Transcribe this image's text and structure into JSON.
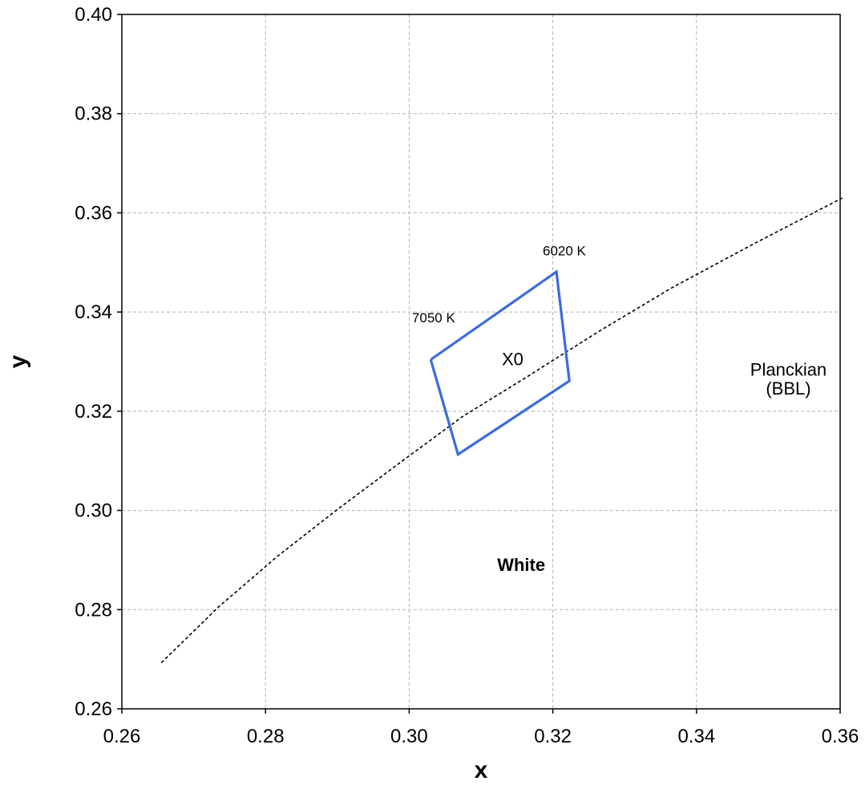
{
  "chart_data": {
    "type": "scatter",
    "title": "",
    "xlabel": "x",
    "ylabel": "y",
    "xlim": [
      0.26,
      0.36
    ],
    "ylim": [
      0.26,
      0.4
    ],
    "xticks": [
      "0.26",
      "0.28",
      "0.30",
      "0.32",
      "0.34",
      "0.36"
    ],
    "yticks": [
      "0.26",
      "0.28",
      "0.30",
      "0.32",
      "0.34",
      "0.36",
      "0.38",
      "0.40"
    ],
    "grid": true,
    "colors": {
      "region": "#3b6bdc",
      "locus": "#000000",
      "grid": "#b4b4b4"
    },
    "series": [
      {
        "name": "Planckian (BBL)",
        "style": "dashed",
        "x": [
          0.2655,
          0.2735,
          0.2817,
          0.2901,
          0.2986,
          0.3074,
          0.3166,
          0.3263,
          0.3366,
          0.3479,
          0.3603
        ],
        "y": [
          0.2693,
          0.2806,
          0.2908,
          0.3003,
          0.3095,
          0.3189,
          0.3271,
          0.336,
          0.3449,
          0.3537,
          0.363
        ]
      },
      {
        "name": "White",
        "style": "solid",
        "x": [
          0.303,
          0.3205,
          0.3223,
          0.3068,
          0.303
        ],
        "y": [
          0.3304,
          0.3481,
          0.3261,
          0.3113,
          0.3304
        ]
      }
    ],
    "annotations": [
      {
        "text": "6020 K",
        "x": 0.3216,
        "y": 0.3514,
        "size": 17
      },
      {
        "text": "7050 K",
        "x": 0.3034,
        "y": 0.3379,
        "size": 17
      },
      {
        "text": "X0",
        "x": 0.3144,
        "y": 0.3293,
        "size": 22
      },
      {
        "text": "Planckian",
        "x": 0.3528,
        "y": 0.3272,
        "size": 22
      },
      {
        "text": "(BBL)",
        "x": 0.3528,
        "y": 0.3234,
        "size": 22
      },
      {
        "text": "White",
        "x": 0.3156,
        "y": 0.2878,
        "size": 22,
        "color": "#3b6bdc",
        "bold": true
      }
    ]
  }
}
